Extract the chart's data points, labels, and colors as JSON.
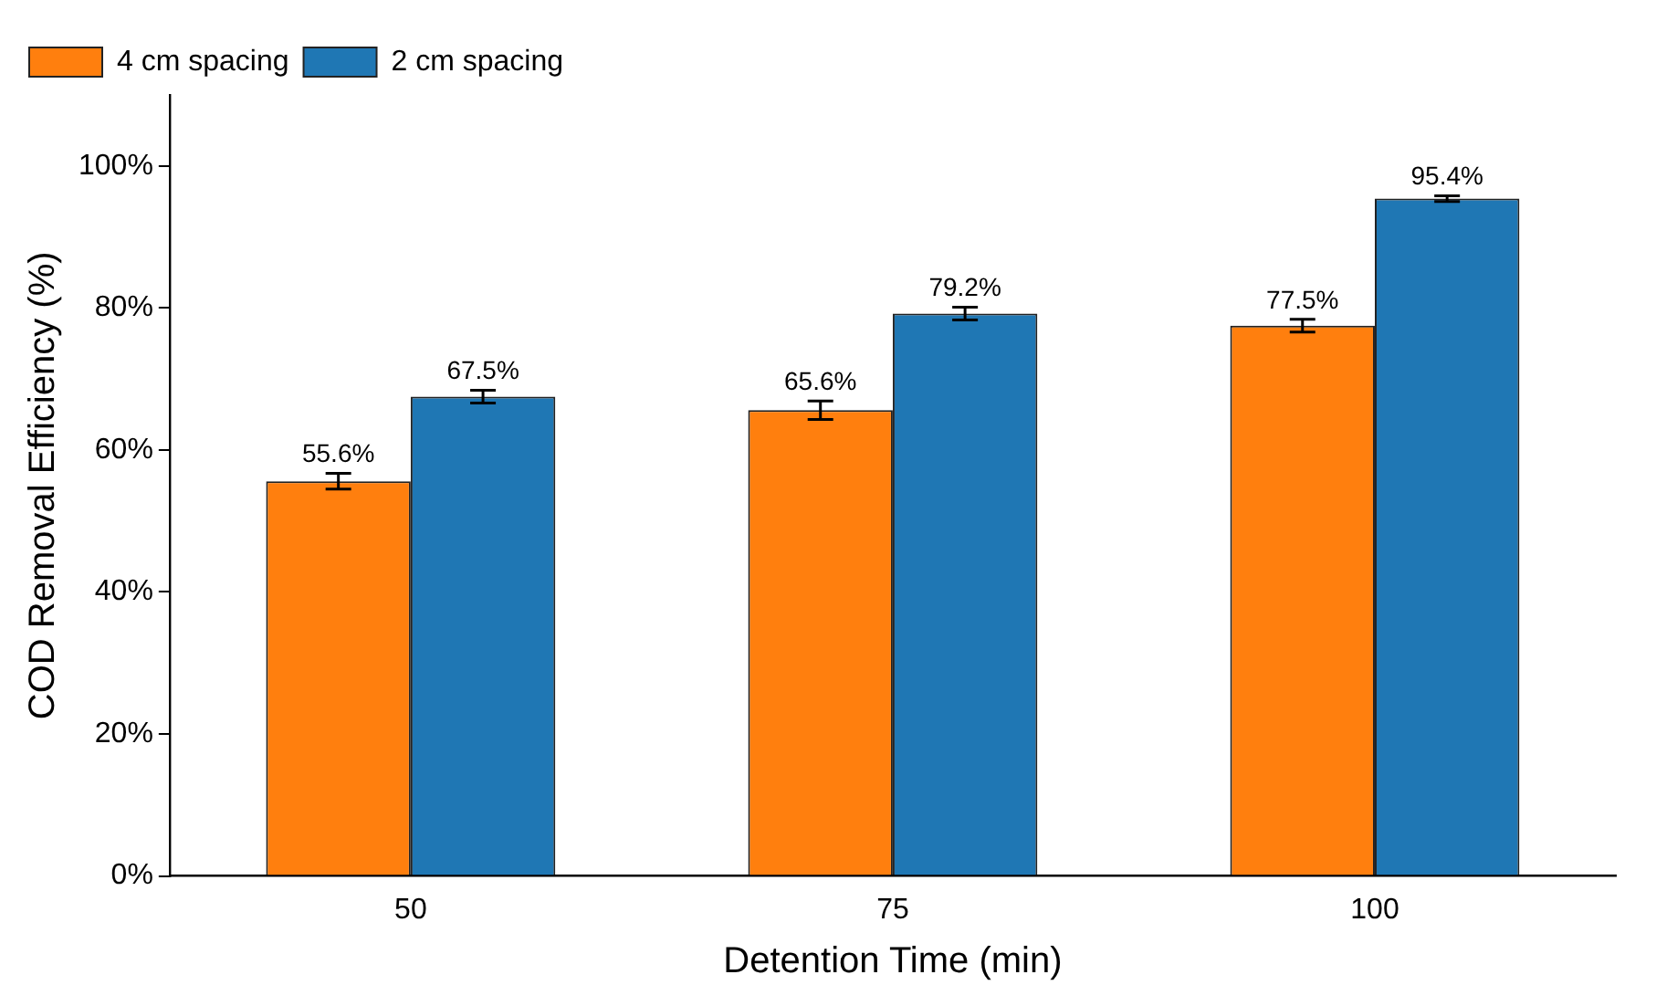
{
  "chart_data": {
    "type": "bar",
    "xlabel": "Detention Time (min)",
    "ylabel": "COD Removal Efficiency (%)",
    "categories": [
      "50",
      "75",
      "100"
    ],
    "series": [
      {
        "name": "4 cm spacing",
        "color": "#ff7f0e",
        "values": [
          55.6,
          65.6,
          77.5
        ],
        "errors": [
          1.1,
          1.3,
          0.9
        ],
        "value_labels": [
          "55.6%",
          "65.6%",
          "77.5%"
        ]
      },
      {
        "name": "2 cm spacing",
        "color": "#1f77b4",
        "values": [
          67.5,
          79.2,
          95.4
        ],
        "errors": [
          0.9,
          0.9,
          0.4
        ],
        "value_labels": [
          "67.5%",
          "79.2%",
          "95.4%"
        ]
      }
    ],
    "ylim": [
      0,
      110
    ],
    "yticks": [
      {
        "value": 0,
        "label": "0%"
      },
      {
        "value": 20,
        "label": "20%"
      },
      {
        "value": 40,
        "label": "40%"
      },
      {
        "value": 60,
        "label": "60%"
      },
      {
        "value": 80,
        "label": "80%"
      },
      {
        "value": 100,
        "label": "100%"
      }
    ],
    "grid": false,
    "legend": "top left"
  }
}
